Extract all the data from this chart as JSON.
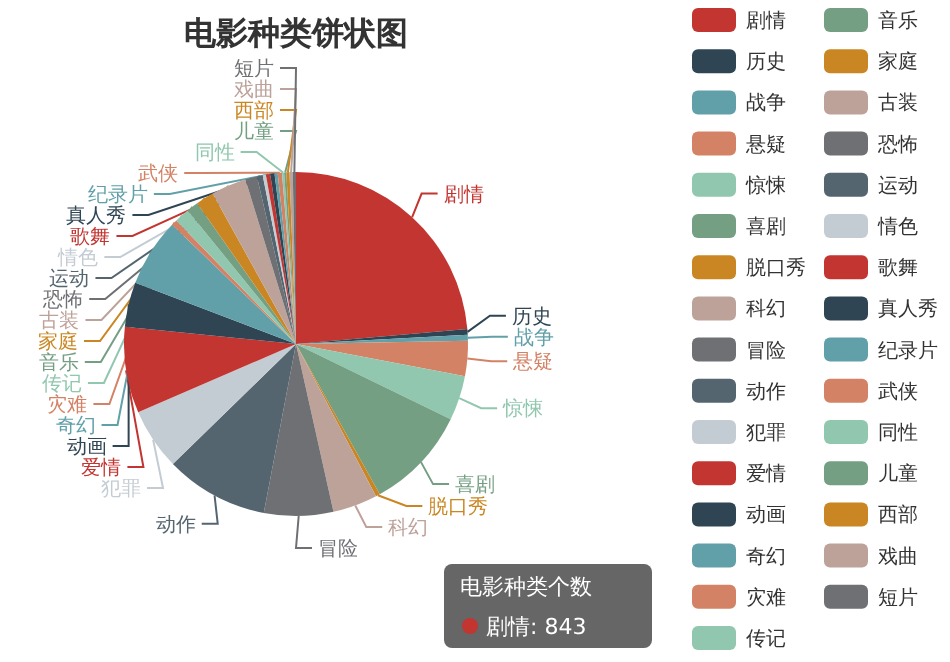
{
  "chart_data": {
    "type": "pie",
    "title": "电影种类饼状图",
    "legend": "right",
    "annotations": [
      "电影种类个数",
      "剧情: 843"
    ],
    "categories": [
      "剧情",
      "历史",
      "战争",
      "悬疑",
      "惊悚",
      "喜剧",
      "脱口秀",
      "科幻",
      "冒险",
      "动作",
      "犯罪",
      "爱情",
      "动画",
      "奇幻",
      "灾难",
      "传记",
      "音乐",
      "家庭",
      "古装",
      "恐怖",
      "运动",
      "情色",
      "歌舞",
      "真人秀",
      "纪录片",
      "武侠",
      "同性",
      "儿童",
      "西部",
      "戏曲",
      "短片"
    ],
    "values": [
      23.6,
      0.55,
      0.55,
      3.3,
      4.2,
      9.7,
      0.4,
      4.2,
      6.5,
      9.7,
      5.8,
      8.1,
      4.2,
      6.4,
      0.55,
      1.4,
      1.1,
      1.7,
      3.3,
      1.1,
      0.55,
      0.3,
      0.4,
      0.4,
      0.3,
      0.4,
      0.2,
      0.2,
      0.3,
      0.3,
      0.3
    ],
    "colors": [
      "#c23531",
      "#2f4554",
      "#61a0a8",
      "#d48265",
      "#91c7ae",
      "#749f83",
      "#ca8622",
      "#bda29a",
      "#6e7074",
      "#546570",
      "#c4ccd3",
      "#c23531",
      "#2f4554",
      "#61a0a8",
      "#d48265",
      "#91c7ae",
      "#749f83",
      "#ca8622",
      "#bda29a",
      "#6e7074",
      "#546570",
      "#c4ccd3",
      "#c23531",
      "#2f4554",
      "#61a0a8",
      "#d48265",
      "#91c7ae",
      "#749f83",
      "#ca8622",
      "#bda29a",
      "#6e7074"
    ]
  }
}
